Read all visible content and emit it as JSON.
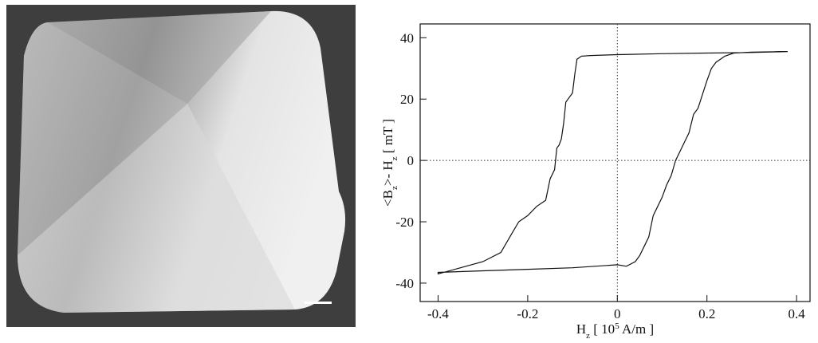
{
  "chart_data": {
    "type": "line",
    "xlabel": [
      "H",
      "z",
      " [ 10",
      "5",
      " A/m ]"
    ],
    "ylabel": [
      "<B",
      "z",
      ">- H",
      "z",
      " [ mT ]"
    ],
    "xlim": [
      -0.44,
      0.43
    ],
    "ylim": [
      -46,
      44.5
    ],
    "xticks": [
      -0.4,
      -0.2,
      0,
      0.2,
      0.4
    ],
    "yticks": [
      -40,
      -20,
      0,
      20,
      40
    ],
    "zero_lines": true,
    "series": [
      {
        "color": "#111111",
        "x": [
          0.38,
          0.3,
          0.2,
          0.1,
          0.0,
          -0.06,
          -0.08,
          -0.09,
          -0.095,
          -0.1,
          -0.11,
          -0.115,
          -0.12,
          -0.125,
          -0.13,
          -0.135,
          -0.14,
          -0.15,
          -0.16,
          -0.18,
          -0.2,
          -0.22,
          -0.24,
          -0.26,
          -0.3,
          -0.35,
          -0.4,
          -0.4,
          -0.3,
          -0.2,
          -0.1,
          0.0,
          0.02,
          0.04,
          0.05,
          0.06,
          0.07,
          0.08,
          0.09,
          0.1,
          0.11,
          0.12,
          0.13,
          0.14,
          0.15,
          0.16,
          0.17,
          0.18,
          0.2,
          0.21,
          0.22,
          0.24,
          0.26,
          0.3,
          0.38
        ],
        "values": [
          35.5,
          35.2,
          35,
          34.8,
          34.5,
          34.2,
          34,
          33,
          28,
          22,
          20,
          19,
          12,
          7,
          5,
          4,
          -3,
          -6,
          -13,
          -15,
          -18,
          -20,
          -25,
          -30,
          -33,
          -35,
          -37,
          -36.5,
          -36,
          -35.5,
          -35,
          -34,
          -34.5,
          -33,
          -31,
          -28,
          -25,
          -18,
          -15,
          -12,
          -8,
          -5,
          0,
          3,
          6,
          9,
          15,
          17,
          26,
          30,
          32,
          34,
          35,
          35.3,
          35.5
        ]
      }
    ]
  }
}
